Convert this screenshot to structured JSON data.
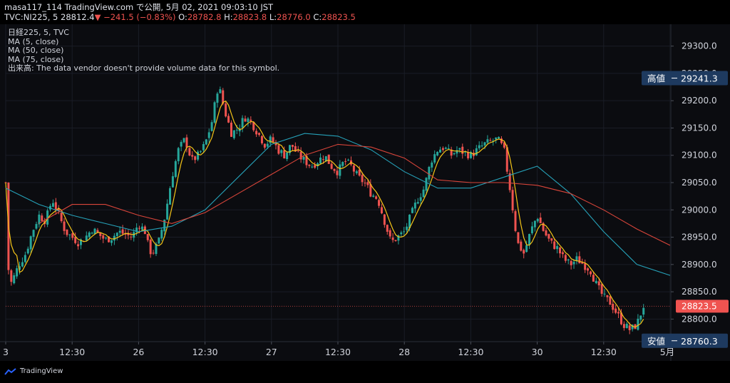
{
  "header": {
    "line1_user": "masa117_114",
    "line1_published": "TradingView.com で公開, 5月 02, 2021 09:03:10 JST",
    "symbol": "TVC:NI225, 5",
    "last": "28812.4",
    "change": "−241.5 (−0.83%)",
    "o_label": "O:",
    "o_value": "28782.8",
    "h_label": "H:",
    "h_value": "28823.8",
    "l_label": "L:",
    "l_value": "28776.0",
    "c_label": "C:",
    "c_value": "28823.5"
  },
  "legend": {
    "title": "日経225, 5, TVC",
    "ma5": "MA (5, close)",
    "ma50": "MA (50, close)",
    "ma75": "MA (75, close)",
    "volume_note": "出来高: The data vendor doesn't provide volume data for this symbol."
  },
  "footer": {
    "brand": "TradingView"
  },
  "colors": {
    "up": "#26a69a",
    "down": "#ef5350",
    "ma5": "#f5c518",
    "ma50": "#26a1b8",
    "ma75": "#d9453a",
    "background": "#0b0c10"
  },
  "chart_data": {
    "type": "candlestick",
    "title": "",
    "xlabel": "",
    "ylabel": "",
    "ylim": [
      28760,
      29340
    ],
    "y_ticks": [
      28800.0,
      28850.0,
      28900.0,
      28950.0,
      29000.0,
      29050.0,
      29100.0,
      29150.0,
      29200.0,
      29250.0,
      29300.0
    ],
    "x_ticks": [
      {
        "label": "3",
        "pos": 0.0
      },
      {
        "label": "12:30",
        "pos": 0.1
      },
      {
        "label": "26",
        "pos": 0.2
      },
      {
        "label": "12:30",
        "pos": 0.3
      },
      {
        "label": "27",
        "pos": 0.4
      },
      {
        "label": "12:30",
        "pos": 0.5
      },
      {
        "label": "28",
        "pos": 0.6
      },
      {
        "label": "12:30",
        "pos": 0.7
      },
      {
        "label": "30",
        "pos": 0.8
      },
      {
        "label": "12:30",
        "pos": 0.9
      },
      {
        "label": "5月",
        "pos": 1.0
      }
    ],
    "price_marks": [
      {
        "name": "high",
        "prefix": "高値",
        "value": 29241.3,
        "label": "29241.3"
      },
      {
        "name": "last",
        "prefix": "",
        "value": 28823.5,
        "label": "28823.5"
      },
      {
        "name": "low",
        "prefix": "安値",
        "value": 28760.3,
        "label": "28760.3"
      }
    ],
    "close_path": [
      [
        0.0,
        29050
      ],
      [
        0.005,
        28860
      ],
      [
        0.01,
        28870
      ],
      [
        0.02,
        28900
      ],
      [
        0.03,
        28920
      ],
      [
        0.04,
        28960
      ],
      [
        0.05,
        28990
      ],
      [
        0.06,
        28980
      ],
      [
        0.07,
        29020
      ],
      [
        0.08,
        28990
      ],
      [
        0.09,
        28960
      ],
      [
        0.1,
        28950
      ],
      [
        0.11,
        28940
      ],
      [
        0.12,
        28950
      ],
      [
        0.13,
        28965
      ],
      [
        0.14,
        28955
      ],
      [
        0.15,
        28945
      ],
      [
        0.16,
        28950
      ],
      [
        0.17,
        28960
      ],
      [
        0.18,
        28955
      ],
      [
        0.19,
        28950
      ],
      [
        0.2,
        28975
      ],
      [
        0.21,
        28960
      ],
      [
        0.215,
        28930
      ],
      [
        0.22,
        28920
      ],
      [
        0.23,
        28940
      ],
      [
        0.24,
        28990
      ],
      [
        0.25,
        29060
      ],
      [
        0.26,
        29110
      ],
      [
        0.27,
        29130
      ],
      [
        0.28,
        29090
      ],
      [
        0.29,
        29100
      ],
      [
        0.3,
        29120
      ],
      [
        0.31,
        29160
      ],
      [
        0.32,
        29230
      ],
      [
        0.33,
        29180
      ],
      [
        0.34,
        29140
      ],
      [
        0.35,
        29150
      ],
      [
        0.36,
        29170
      ],
      [
        0.37,
        29160
      ],
      [
        0.38,
        29140
      ],
      [
        0.39,
        29120
      ],
      [
        0.4,
        29130
      ],
      [
        0.41,
        29110
      ],
      [
        0.42,
        29100
      ],
      [
        0.43,
        29120
      ],
      [
        0.44,
        29100
      ],
      [
        0.45,
        29090
      ],
      [
        0.46,
        29080
      ],
      [
        0.47,
        29090
      ],
      [
        0.48,
        29100
      ],
      [
        0.49,
        29080
      ],
      [
        0.5,
        29070
      ],
      [
        0.51,
        29090
      ],
      [
        0.52,
        29080
      ],
      [
        0.53,
        29060
      ],
      [
        0.54,
        29050
      ],
      [
        0.55,
        29030
      ],
      [
        0.56,
        29020
      ],
      [
        0.57,
        28980
      ],
      [
        0.58,
        28940
      ],
      [
        0.59,
        28950
      ],
      [
        0.6,
        28960
      ],
      [
        0.61,
        28990
      ],
      [
        0.62,
        29020
      ],
      [
        0.63,
        29040
      ],
      [
        0.64,
        29090
      ],
      [
        0.65,
        29110
      ],
      [
        0.66,
        29115
      ],
      [
        0.67,
        29100
      ],
      [
        0.68,
        29110
      ],
      [
        0.69,
        29105
      ],
      [
        0.7,
        29100
      ],
      [
        0.71,
        29110
      ],
      [
        0.72,
        29120
      ],
      [
        0.73,
        29125
      ],
      [
        0.74,
        29130
      ],
      [
        0.75,
        29110
      ],
      [
        0.76,
        29030
      ],
      [
        0.77,
        28940
      ],
      [
        0.78,
        28920
      ],
      [
        0.79,
        28960
      ],
      [
        0.8,
        28990
      ],
      [
        0.81,
        28960
      ],
      [
        0.82,
        28940
      ],
      [
        0.83,
        28930
      ],
      [
        0.84,
        28910
      ],
      [
        0.85,
        28900
      ],
      [
        0.86,
        28910
      ],
      [
        0.87,
        28900
      ],
      [
        0.88,
        28890
      ],
      [
        0.89,
        28860
      ],
      [
        0.9,
        28840
      ],
      [
        0.91,
        28830
      ],
      [
        0.92,
        28810
      ],
      [
        0.93,
        28790
      ],
      [
        0.94,
        28780
      ],
      [
        0.95,
        28790
      ],
      [
        0.96,
        28824
      ]
    ],
    "series": [
      {
        "name": "MA (5, close)",
        "color": "#f5c518"
      },
      {
        "name": "MA (50, close)",
        "color": "#26a1b8",
        "points": [
          [
            0.0,
            29040
          ],
          [
            0.05,
            29010
          ],
          [
            0.1,
            28990
          ],
          [
            0.15,
            28975
          ],
          [
            0.2,
            28960
          ],
          [
            0.25,
            28970
          ],
          [
            0.3,
            29000
          ],
          [
            0.35,
            29060
          ],
          [
            0.4,
            29120
          ],
          [
            0.45,
            29140
          ],
          [
            0.5,
            29135
          ],
          [
            0.55,
            29110
          ],
          [
            0.6,
            29070
          ],
          [
            0.65,
            29040
          ],
          [
            0.7,
            29040
          ],
          [
            0.75,
            29060
          ],
          [
            0.8,
            29080
          ],
          [
            0.85,
            29030
          ],
          [
            0.9,
            28960
          ],
          [
            0.95,
            28900
          ],
          [
            1.0,
            28880
          ]
        ]
      },
      {
        "name": "MA (75, close)",
        "color": "#d9453a",
        "points": [
          [
            0.05,
            28975
          ],
          [
            0.1,
            29010
          ],
          [
            0.15,
            29010
          ],
          [
            0.2,
            28990
          ],
          [
            0.25,
            28975
          ],
          [
            0.3,
            28995
          ],
          [
            0.35,
            29030
          ],
          [
            0.4,
            29065
          ],
          [
            0.45,
            29100
          ],
          [
            0.5,
            29120
          ],
          [
            0.55,
            29115
          ],
          [
            0.6,
            29095
          ],
          [
            0.65,
            29055
          ],
          [
            0.7,
            29050
          ],
          [
            0.75,
            29050
          ],
          [
            0.8,
            29045
          ],
          [
            0.85,
            29030
          ],
          [
            0.9,
            29000
          ],
          [
            0.95,
            28965
          ],
          [
            1.0,
            28935
          ]
        ]
      }
    ]
  }
}
